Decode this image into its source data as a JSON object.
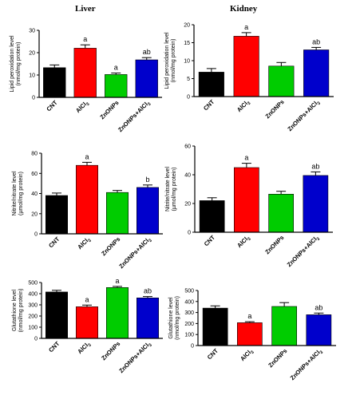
{
  "columns": [
    {
      "title": "Liver"
    },
    {
      "title": "Kidney"
    }
  ],
  "colors": {
    "CNT": "#000000",
    "AlCl3": "#ff0000",
    "ZnONPs": "#00cc00",
    "ZnONPs+AlCl3": "#0000cc"
  },
  "chart_data": [
    {
      "type": "bar",
      "organ": "Liver",
      "ylabel": [
        "Lipid peroxidation level",
        "(nmol/mg protein)"
      ],
      "categories": [
        "CNT",
        "AlCl3",
        "ZnONPs",
        "ZnONPs+AlCl3"
      ],
      "values": [
        13.3,
        22.0,
        10.2,
        16.8
      ],
      "errors": [
        1.2,
        1.5,
        0.7,
        1.0
      ],
      "annotations": [
        "",
        "a",
        "a",
        "ab"
      ],
      "ylim": [
        0,
        30
      ],
      "yticks": [
        0,
        10,
        20,
        30
      ]
    },
    {
      "type": "bar",
      "organ": "Kidney",
      "ylabel": [
        "Lipid peroxidation level",
        "(nmol/mg protein)"
      ],
      "categories": [
        "CNT",
        "AlCl3",
        "ZnONPs",
        "ZnONPs+AlCl3"
      ],
      "values": [
        6.8,
        16.8,
        8.5,
        13.0
      ],
      "errors": [
        1.0,
        1.0,
        1.0,
        0.7
      ],
      "annotations": [
        "",
        "a",
        "",
        "ab"
      ],
      "ylim": [
        0,
        20
      ],
      "yticks": [
        0,
        5,
        10,
        15,
        20
      ]
    },
    {
      "type": "bar",
      "organ": "Liver",
      "ylabel": [
        "Nitrite/nitrate level",
        "(µmol/mg protein)"
      ],
      "categories": [
        "CNT",
        "AlCl3",
        "ZnONPs",
        "ZnONPs+AlCl3"
      ],
      "values": [
        38,
        68,
        41,
        46
      ],
      "errors": [
        2.5,
        3.0,
        2.0,
        2.5
      ],
      "annotations": [
        "",
        "a",
        "",
        "b"
      ],
      "ylim": [
        0,
        80
      ],
      "yticks": [
        0,
        20,
        40,
        60,
        80
      ]
    },
    {
      "type": "bar",
      "organ": "Kidney",
      "ylabel": [
        "Nitrite/nitrate level",
        "(µmol/mg protein)"
      ],
      "categories": [
        "CNT",
        "AlCl3",
        "ZnONPs",
        "ZnONPs+AlCl3"
      ],
      "values": [
        22,
        45,
        26.5,
        39.5
      ],
      "errors": [
        2.0,
        3.0,
        2.0,
        2.5
      ],
      "annotations": [
        "",
        "a",
        "",
        "ab"
      ],
      "ylim": [
        0,
        60
      ],
      "yticks": [
        0,
        20,
        40,
        60
      ]
    },
    {
      "type": "bar",
      "organ": "Liver",
      "ylabel": [
        "Glutathione level",
        "(nmol/mg protein)"
      ],
      "categories": [
        "CNT",
        "AlCl3",
        "ZnONPs",
        "ZnONPs+AlCl3"
      ],
      "values": [
        415,
        283,
        455,
        362
      ],
      "errors": [
        15,
        15,
        10,
        12
      ],
      "annotations": [
        "",
        "a",
        "a",
        "ab"
      ],
      "ylim": [
        0,
        500
      ],
      "yticks": [
        0,
        100,
        200,
        300,
        400,
        500
      ]
    },
    {
      "type": "bar",
      "organ": "Kidney",
      "ylabel": [
        "Glutathione level",
        "(nmol/mg protein)"
      ],
      "categories": [
        "CNT",
        "AlCl3",
        "ZnONPs",
        "ZnONPs+AlCl3"
      ],
      "values": [
        340,
        207,
        355,
        280
      ],
      "errors": [
        20,
        10,
        35,
        15
      ],
      "annotations": [
        "",
        "a",
        "",
        "ab"
      ],
      "ylim": [
        0,
        500
      ],
      "yticks": [
        0,
        100,
        200,
        300,
        400,
        500
      ]
    }
  ]
}
